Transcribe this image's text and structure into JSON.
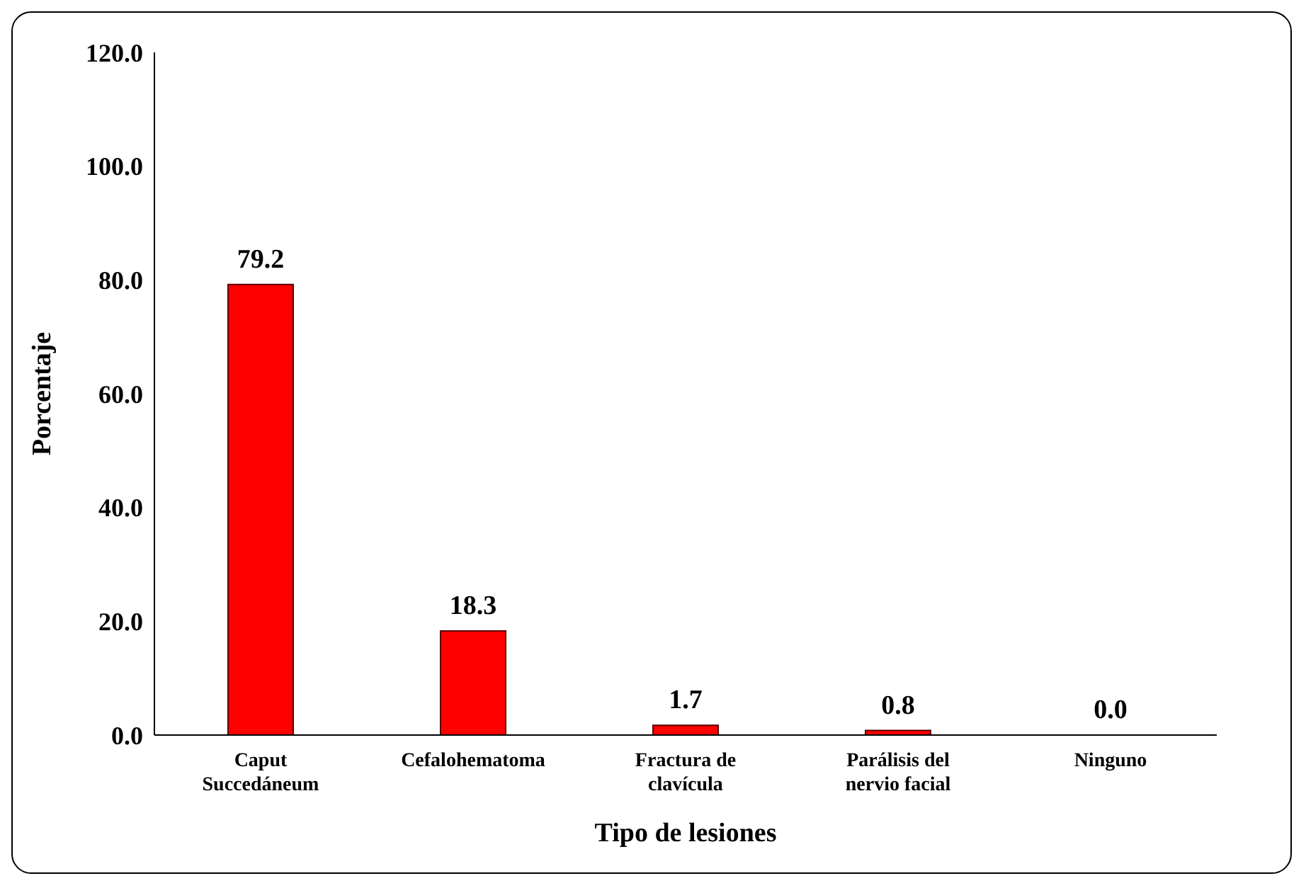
{
  "chart_data": {
    "type": "bar",
    "xlabel": "Tipo de lesiones",
    "ylabel": "Porcentaje",
    "categories": [
      "Caput Succedáneum",
      "Cefalohematoma",
      "Fractura de clavícula",
      "Parálisis del nervio facial",
      "Ninguno"
    ],
    "values": [
      79.2,
      18.3,
      1.7,
      0.8,
      0.0
    ],
    "value_labels": [
      "79.2",
      "18.3",
      "1.7",
      "0.8",
      "0.0"
    ],
    "color": "#ff0000",
    "ylim": [
      0,
      120
    ],
    "yticks": [
      {
        "value": 0,
        "label": "0.0"
      },
      {
        "value": 20,
        "label": "20.0"
      },
      {
        "value": 40,
        "label": "40.0"
      },
      {
        "value": 60,
        "label": "60.0"
      },
      {
        "value": 80,
        "label": "80.0"
      },
      {
        "value": 100,
        "label": "100.0"
      },
      {
        "value": 120,
        "label": "120.0"
      }
    ],
    "grid": false,
    "legend": false
  }
}
